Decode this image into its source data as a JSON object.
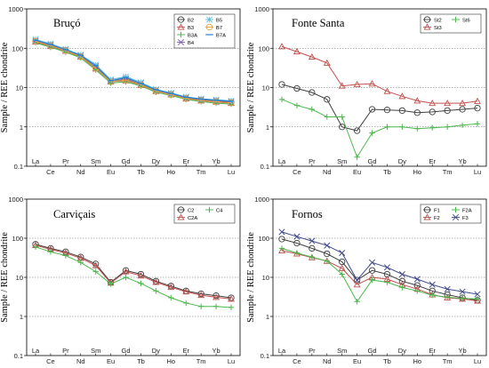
{
  "chart_data": [
    {
      "type": "line",
      "title": "Bruçó",
      "ylabel": "Sample / REE chondrite",
      "yscale": "log",
      "ylim": [
        0.1,
        1000
      ],
      "yticks": [
        "0.1",
        "1",
        "10",
        "100",
        "1000"
      ],
      "grid": "dotted y",
      "legend": "top-right",
      "categories": [
        "La",
        "Ce",
        "Pr",
        "Nd",
        "Sm",
        "Eu",
        "Gd",
        "Tb",
        "Dy",
        "Ho",
        "Er",
        "Tm",
        "Yb",
        "Lu"
      ],
      "series": [
        {
          "name": "B2",
          "color": "#404040",
          "marker": "circle",
          "values": [
            150,
            118,
            88,
            62,
            32,
            14,
            16,
            12,
            8.2,
            6.7,
            5.4,
            4.8,
            4.5,
            4.2
          ]
        },
        {
          "name": "B3",
          "color": "#c0504d",
          "marker": "triangle",
          "values": [
            145,
            112,
            85,
            60,
            30,
            14,
            15,
            11.5,
            8,
            6.6,
            5.2,
            4.6,
            4.3,
            4.0
          ]
        },
        {
          "name": "B3A",
          "color": "#4cb84c",
          "marker": "plus",
          "values": [
            138,
            106,
            80,
            57,
            28,
            13,
            14,
            11,
            7.6,
            6.3,
            5.0,
            4.4,
            4.0,
            3.8
          ]
        },
        {
          "name": "B4",
          "color": "#7b5ea7",
          "marker": "x",
          "values": [
            155,
            122,
            92,
            65,
            35,
            15,
            17,
            13,
            8.6,
            7.0,
            5.6,
            5.0,
            4.7,
            4.4
          ]
        },
        {
          "name": "B5",
          "color": "#5bc0de",
          "marker": "star",
          "values": [
            168,
            130,
            95,
            68,
            38,
            16,
            19,
            13.5,
            9,
            7.3,
            5.8,
            5.2,
            4.9,
            4.6
          ]
        },
        {
          "name": "B7",
          "color": "#e8a34a",
          "marker": "circle",
          "values": [
            150,
            116,
            87,
            61,
            31,
            14,
            15.5,
            11.8,
            8.1,
            6.6,
            5.3,
            4.7,
            4.4,
            4.1
          ]
        },
        {
          "name": "B7A",
          "color": "#1e7fd6",
          "marker": "bar",
          "values": [
            160,
            125,
            92,
            66,
            36,
            15,
            18,
            12.8,
            8.8,
            7.1,
            5.7,
            5.1,
            4.8,
            4.5
          ]
        }
      ]
    },
    {
      "type": "line",
      "title": "Fonte Santa",
      "ylabel": "Sample / REE chondrite",
      "yscale": "log",
      "ylim": [
        0.1,
        1000
      ],
      "yticks": [
        "0.1",
        "1",
        "10",
        "100",
        "1000"
      ],
      "grid": "dotted y",
      "legend": "top-right",
      "categories": [
        "La",
        "Ce",
        "Pr",
        "Nd",
        "Sm",
        "Eu",
        "Gd",
        "Tb",
        "Dy",
        "Ho",
        "Er",
        "Tm",
        "Yb",
        "Lu"
      ],
      "series": [
        {
          "name": "St2",
          "color": "#404040",
          "marker": "circle",
          "values": [
            12,
            9.5,
            7.5,
            5,
            1.0,
            0.8,
            2.8,
            2.7,
            2.6,
            2.3,
            2.4,
            2.6,
            2.8,
            3.0
          ]
        },
        {
          "name": "St3",
          "color": "#c0504d",
          "marker": "triangle",
          "values": [
            110,
            82,
            60,
            42,
            11,
            12,
            12.5,
            8,
            6,
            4.6,
            4,
            4,
            4,
            4.5
          ]
        },
        {
          "name": "St6",
          "color": "#4cb84c",
          "marker": "plus",
          "values": [
            5,
            3.5,
            2.8,
            1.8,
            1.8,
            0.17,
            0.7,
            1.0,
            1.0,
            0.9,
            0.95,
            1.0,
            1.1,
            1.2
          ]
        }
      ]
    },
    {
      "type": "line",
      "title": "Carviçais",
      "ylabel": "Sample / REE chondrite",
      "yscale": "log",
      "ylim": [
        0.1,
        1000
      ],
      "yticks": [
        "0.1",
        "1",
        "10",
        "100",
        "1000"
      ],
      "grid": "dotted y",
      "legend": "top-right",
      "categories": [
        "La",
        "Ce",
        "Pr",
        "Nd",
        "Sm",
        "Eu",
        "Gd",
        "Tb",
        "Dy",
        "Ho",
        "Er",
        "Tm",
        "Yb",
        "Lu"
      ],
      "series": [
        {
          "name": "C2",
          "color": "#404040",
          "marker": "circle",
          "values": [
            70,
            55,
            45,
            33,
            22,
            7.5,
            15,
            12,
            8,
            6,
            4.5,
            3.8,
            3.4,
            3.0
          ]
        },
        {
          "name": "C2A",
          "color": "#c0504d",
          "marker": "triangle",
          "values": [
            66,
            52,
            42,
            31,
            20,
            7.2,
            14,
            11,
            7.5,
            5.6,
            4.3,
            3.5,
            3.1,
            2.8
          ]
        },
        {
          "name": "C4",
          "color": "#4cb84c",
          "marker": "plus",
          "values": [
            60,
            45,
            36,
            24,
            14,
            6.8,
            10,
            7,
            4.5,
            3,
            2.2,
            1.8,
            1.8,
            1.7
          ]
        }
      ]
    },
    {
      "type": "line",
      "title": "Fornos",
      "ylabel": "Sample / REE chondrite",
      "yscale": "log",
      "ylim": [
        0.1,
        1000
      ],
      "yticks": [
        "0.1",
        "1",
        "10",
        "100",
        "1000"
      ],
      "grid": "dotted y",
      "legend": "top-right",
      "categories": [
        "La",
        "Ce",
        "Pr",
        "Nd",
        "Sm",
        "Eu",
        "Gd",
        "Tb",
        "Dy",
        "Ho",
        "Er",
        "Tm",
        "Yb",
        "Lu"
      ],
      "series": [
        {
          "name": "F1",
          "color": "#404040",
          "marker": "circle",
          "values": [
            95,
            75,
            55,
            40,
            25,
            8.5,
            15,
            12,
            8,
            6.2,
            4.5,
            3.6,
            3.0,
            2.6
          ]
        },
        {
          "name": "F2",
          "color": "#c0504d",
          "marker": "triangle",
          "values": [
            48,
            40,
            32,
            26,
            17,
            6.5,
            10,
            9,
            6.5,
            5,
            3.6,
            3,
            2.8,
            2.5
          ]
        },
        {
          "name": "F2A",
          "color": "#4cb84c",
          "marker": "plus",
          "values": [
            55,
            42,
            33,
            26,
            12,
            2.4,
            8.5,
            7.5,
            5.5,
            4.5,
            3.5,
            3.1,
            2.9,
            2.8
          ]
        },
        {
          "name": "F3",
          "color": "#404a8a",
          "marker": "x",
          "values": [
            145,
            110,
            85,
            65,
            42,
            8.5,
            24,
            18,
            12,
            9,
            6.5,
            5,
            4.3,
            3.7
          ]
        }
      ]
    }
  ]
}
